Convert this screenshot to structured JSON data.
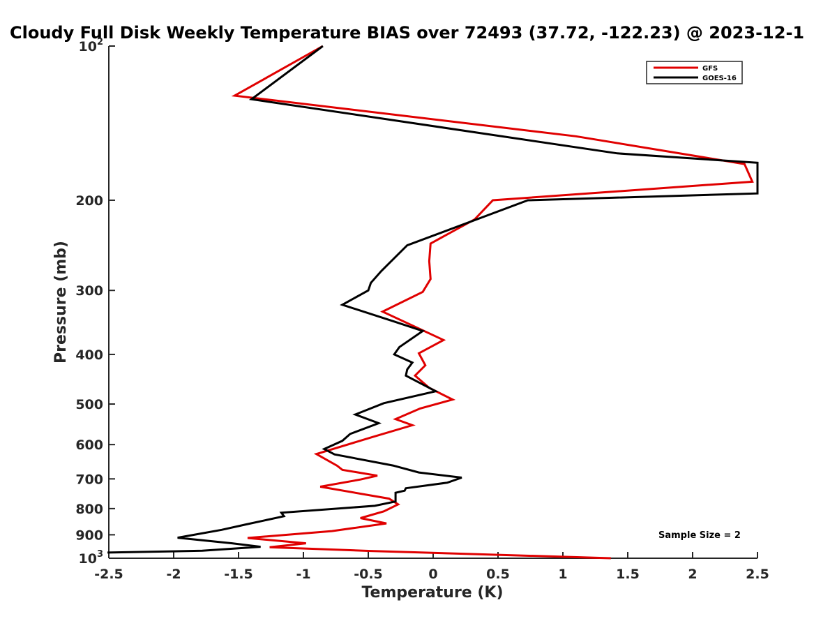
{
  "chart_data": {
    "type": "line",
    "title": "Cloudy Full Disk Weekly Temperature BIAS over 72493 (37.72, -122.23) @ 2023-12-1",
    "xlabel": "Temperature (K)",
    "ylabel": "Pressure (mb)",
    "xlim": [
      -2.5,
      2.5
    ],
    "ylim": [
      1000,
      100
    ],
    "y_scale": "log",
    "y_reversed": true,
    "xticks": [
      "-2.5",
      "-2",
      "-1.5",
      "-1",
      "-0.5",
      "0",
      "0.5",
      "1",
      "1.5",
      "2",
      "2.5"
    ],
    "xtick_values": [
      -2.5,
      -2,
      -1.5,
      -1,
      -0.5,
      0,
      0.5,
      1,
      1.5,
      2,
      2.5
    ],
    "yticks": [
      {
        "value": 100,
        "base": "10",
        "exp": "2"
      },
      {
        "value": 200,
        "label": "200"
      },
      {
        "value": 300,
        "label": "300"
      },
      {
        "value": 400,
        "label": "400"
      },
      {
        "value": 500,
        "label": "500"
      },
      {
        "value": 600,
        "label": "600"
      },
      {
        "value": 700,
        "label": "700"
      },
      {
        "value": 800,
        "label": "800"
      },
      {
        "value": 900,
        "label": "900"
      },
      {
        "value": 1000,
        "base": "10",
        "exp": "3"
      }
    ],
    "legend_position": "top-right",
    "grid": false,
    "annotation": "Sample Size = 2",
    "series": [
      {
        "name": "GFS",
        "color": "#e00000",
        "points": [
          [
            -0.85,
            100
          ],
          [
            -1.53,
            125
          ],
          [
            1.1,
            150
          ],
          [
            2.4,
            170
          ],
          [
            2.46,
            184
          ],
          [
            0.46,
            200
          ],
          [
            0.32,
            218
          ],
          [
            -0.02,
            243
          ],
          [
            -0.03,
            263
          ],
          [
            -0.02,
            285
          ],
          [
            -0.08,
            302
          ],
          [
            -0.39,
            330
          ],
          [
            0.08,
            375
          ],
          [
            -0.11,
            398
          ],
          [
            -0.06,
            420
          ],
          [
            -0.14,
            440
          ],
          [
            -0.03,
            465
          ],
          [
            0.15,
            490
          ],
          [
            -0.1,
            510
          ],
          [
            -0.29,
            535
          ],
          [
            -0.16,
            550
          ],
          [
            -0.47,
            580
          ],
          [
            -0.9,
            626
          ],
          [
            -0.74,
            660
          ],
          [
            -0.7,
            672
          ],
          [
            -0.43,
            690
          ],
          [
            -0.56,
            702
          ],
          [
            -0.87,
            725
          ],
          [
            -0.34,
            765
          ],
          [
            -0.27,
            785
          ],
          [
            -0.38,
            810
          ],
          [
            -0.56,
            835
          ],
          [
            -0.36,
            855
          ],
          [
            -0.78,
            885
          ],
          [
            -1.43,
            913
          ],
          [
            -0.98,
            935
          ],
          [
            -1.26,
            952
          ],
          [
            -0.48,
            968
          ],
          [
            1.37,
            1000
          ]
        ]
      },
      {
        "name": "GOES-16",
        "color": "#000000",
        "points": [
          [
            -0.85,
            100
          ],
          [
            -1.4,
            127
          ],
          [
            1.42,
            162
          ],
          [
            2.5,
            169
          ],
          [
            2.5,
            194
          ],
          [
            0.73,
            200
          ],
          [
            -0.2,
            245
          ],
          [
            -0.4,
            275
          ],
          [
            -0.48,
            290
          ],
          [
            -0.5,
            300
          ],
          [
            -0.7,
            320
          ],
          [
            -0.3,
            345
          ],
          [
            -0.08,
            360
          ],
          [
            -0.26,
            387
          ],
          [
            -0.3,
            400
          ],
          [
            -0.16,
            415
          ],
          [
            -0.2,
            428
          ],
          [
            -0.21,
            440
          ],
          [
            0.02,
            472
          ],
          [
            -0.38,
            498
          ],
          [
            -0.6,
            524
          ],
          [
            -0.42,
            545
          ],
          [
            -0.64,
            572
          ],
          [
            -0.7,
            590
          ],
          [
            -0.84,
            612
          ],
          [
            -0.76,
            627
          ],
          [
            -0.31,
            659
          ],
          [
            -0.11,
            680
          ],
          [
            0.22,
            696
          ],
          [
            0.11,
            712
          ],
          [
            -0.21,
            730
          ],
          [
            -0.22,
            738
          ],
          [
            -0.29,
            745
          ],
          [
            -0.29,
            775
          ],
          [
            -0.45,
            790
          ],
          [
            -1.17,
            815
          ],
          [
            -1.15,
            828
          ],
          [
            -1.45,
            860
          ],
          [
            -1.63,
            880
          ],
          [
            -1.97,
            912
          ],
          [
            -1.55,
            935
          ],
          [
            -1.33,
            950
          ],
          [
            -1.78,
            967
          ],
          [
            -2.51,
            975
          ]
        ]
      }
    ]
  }
}
